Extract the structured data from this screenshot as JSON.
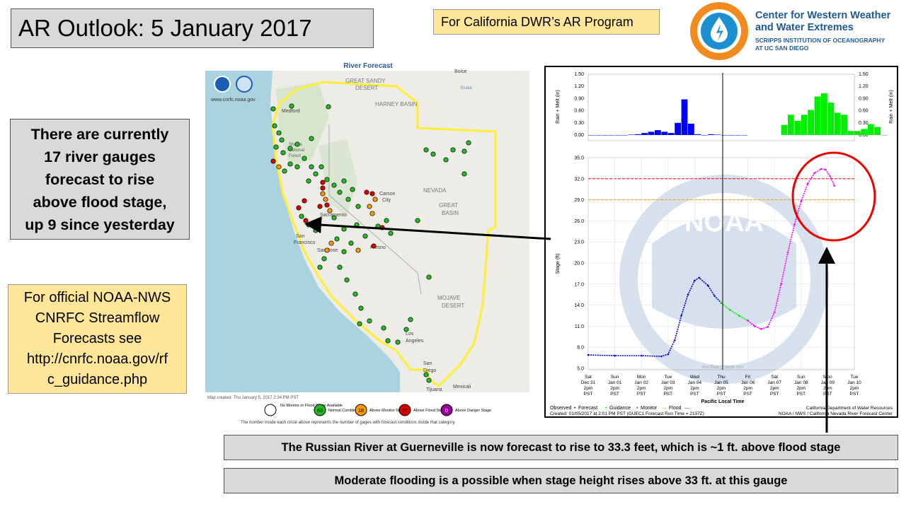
{
  "slide": {
    "title": "AR Outlook: 5 January 2017",
    "program": "For California DWR’s AR Program",
    "gauges_text": [
      "There are currently",
      "17 river gauges",
      "forecast to rise",
      "above flood stage,",
      "up 9 since yesterday"
    ],
    "official_text": [
      "For official NOAA-NWS",
      "CNRFC Streamflow",
      "Forecasts see",
      "http://cnrfc.noaa.gov/rf",
      "c_guidance.php"
    ],
    "russian_text": "The Russian  River at Guerneville is now forecast to rise to 33.3 feet, which is ~1 ft. above flood stage",
    "moderate_text": "Moderate  flooding  is a possible  when stage height rises above 33 ft. at this gauge"
  },
  "logo": {
    "org_line1": "Center for Western Weather",
    "org_line2": "and Water Extremes",
    "sub_line1": "SCRIPPS INSTITUTION OF OCEANOGRAPHY",
    "sub_line2": "AT UC SAN DIEGO"
  },
  "map": {
    "title": "River Forecast",
    "url": "www.cnrfc.noaa.gov",
    "map_created": "Map created: Thu January 5, 2017 2:34 PM PST",
    "footnote": "The number inside each circle above represents the number of gages with forecast conditions inside that category.",
    "places": [
      "GREAT SANDY",
      "DESERT",
      "HARNEY BASIN",
      "Medford",
      "NEVADA",
      "GREAT",
      "BASIN",
      "Carson",
      "City",
      "Sacramento",
      "San",
      "Francisco",
      "San Jose",
      "Fresno",
      "MOJAVE",
      "DESERT",
      "Los",
      "Angeles",
      "San",
      "Diego",
      "Tijuana",
      "Mexicali",
      "Boise",
      "Shasta",
      "National",
      "Forest",
      "Snake"
    ],
    "legend": [
      {
        "label": "No Monitor or Flood Stage Available",
        "count": "",
        "color": "#ffffff"
      },
      {
        "label": "Normal Conditions",
        "count": "63",
        "color": "#22bb22"
      },
      {
        "label": "Above Monitor Stage",
        "count": "18",
        "color": "#ff9900"
      },
      {
        "label": "Above Flood Stage",
        "count": "17",
        "color": "#dd0000"
      },
      {
        "label": "Above Danger Stage",
        "count": "0",
        "color": "#990099"
      }
    ]
  },
  "chart_data": [
    {
      "type": "bar",
      "ylabel": "Rain + Melt (in)",
      "ylim": [
        0,
        1.5
      ],
      "yticks": [
        "0.00",
        "0.30",
        "0.60",
        "0.90",
        "1.20",
        "1.50"
      ],
      "series": [
        {
          "color": "#0000ff",
          "x_hours": [
            0,
            6,
            12,
            18,
            24,
            30,
            36,
            42,
            48,
            54,
            60,
            66,
            72,
            78,
            84,
            90,
            96,
            102,
            108,
            114,
            120,
            126,
            132,
            138
          ],
          "values": [
            0,
            0,
            0,
            0,
            0,
            0,
            0.01,
            0.02,
            0.05,
            0.08,
            0.12,
            0.08,
            0.05,
            0.3,
            0.88,
            0.28,
            0.02,
            0,
            0.02,
            0.01,
            0,
            0,
            0,
            0
          ]
        },
        {
          "color": "#00ee00",
          "x_hours": [
            174,
            180,
            186,
            192,
            198,
            204,
            210,
            216,
            222,
            228,
            234,
            240,
            246,
            252,
            258,
            264
          ],
          "values": [
            0.25,
            0.5,
            0.35,
            0.5,
            0.62,
            0.95,
            1.03,
            0.8,
            0.55,
            0.5,
            0.1,
            0.1,
            0.15,
            0.27,
            0.2,
            0
          ]
        }
      ]
    },
    {
      "type": "line",
      "ylabel": "Stage (ft)",
      "xlabel": "Pacific Local Time",
      "ylim": [
        5,
        35
      ],
      "yticks": [
        "5.0",
        "8.0",
        "11.0",
        "14.0",
        "17.0",
        "20.0",
        "23.0",
        "26.0",
        "29.0",
        "32.0",
        "35.0"
      ],
      "x_ticks": [
        {
          "day": "Sat",
          "date": "Dec 31"
        },
        {
          "day": "Sun",
          "date": "Jan 01"
        },
        {
          "day": "Mon",
          "date": "Jan 02"
        },
        {
          "day": "Tue",
          "date": "Jan 03"
        },
        {
          "day": "Wed",
          "date": "Jan 04"
        },
        {
          "day": "Thu",
          "date": "Jan 05"
        },
        {
          "day": "Fri",
          "date": "Jan 06"
        },
        {
          "day": "Sat",
          "date": "Jan 07"
        },
        {
          "day": "Sun",
          "date": "Jan 08"
        },
        {
          "day": "Mon",
          "date": "Jan 09"
        },
        {
          "day": "Tue",
          "date": "Jan 10"
        }
      ],
      "x_tick_time": "2pm",
      "x_tick_tz": "PST",
      "past_future": "<<< Past | Future >>>",
      "flood_stage": 32.0,
      "monitor_stage": 29.0,
      "series": [
        {
          "name": "Observed",
          "color": "#0000cc",
          "points": [
            [
              0,
              6.9
            ],
            [
              24,
              6.8
            ],
            [
              48,
              6.8
            ],
            [
              66,
              6.7
            ],
            [
              72,
              7.0
            ],
            [
              78,
              9.0
            ],
            [
              84,
              12.5
            ],
            [
              90,
              15.5
            ],
            [
              96,
              17.5
            ],
            [
              100,
              17.9
            ],
            [
              108,
              16.8
            ],
            [
              114,
              15.3
            ],
            [
              120,
              14.3
            ]
          ]
        },
        {
          "name": "Guidance",
          "color": "#00ee00",
          "points": [
            [
              120,
              14.3
            ],
            [
              128,
              13.3
            ],
            [
              136,
              12.5
            ],
            [
              144,
              11.8
            ]
          ]
        },
        {
          "name": "Monitor",
          "color": "#ff00ff",
          "points": [
            [
              144,
              11.8
            ],
            [
              150,
              11.0
            ],
            [
              156,
              10.6
            ],
            [
              162,
              10.9
            ],
            [
              168,
              13.0
            ],
            [
              174,
              17.0
            ],
            [
              180,
              21.5
            ],
            [
              186,
              25.5
            ],
            [
              192,
              28.8
            ],
            [
              198,
              31.3
            ],
            [
              204,
              32.8
            ],
            [
              210,
              33.4
            ],
            [
              214,
              33.3
            ],
            [
              218,
              32.4
            ],
            [
              222,
              31.0
            ]
          ]
        }
      ],
      "legend_items": [
        "Observed",
        "Forecast",
        "Guidance",
        "Monitor",
        "Flood"
      ],
      "footer_left": "Created: 01/05/2017 at 2:01 PM PST   (GUEC1 Forecast Run Time = 2137Z)",
      "footer_right_1": "California Department of Water Resources",
      "footer_right_2": "NOAA / NWS / California Nevada River Forecast Center",
      "watermark": "NOAA"
    }
  ]
}
